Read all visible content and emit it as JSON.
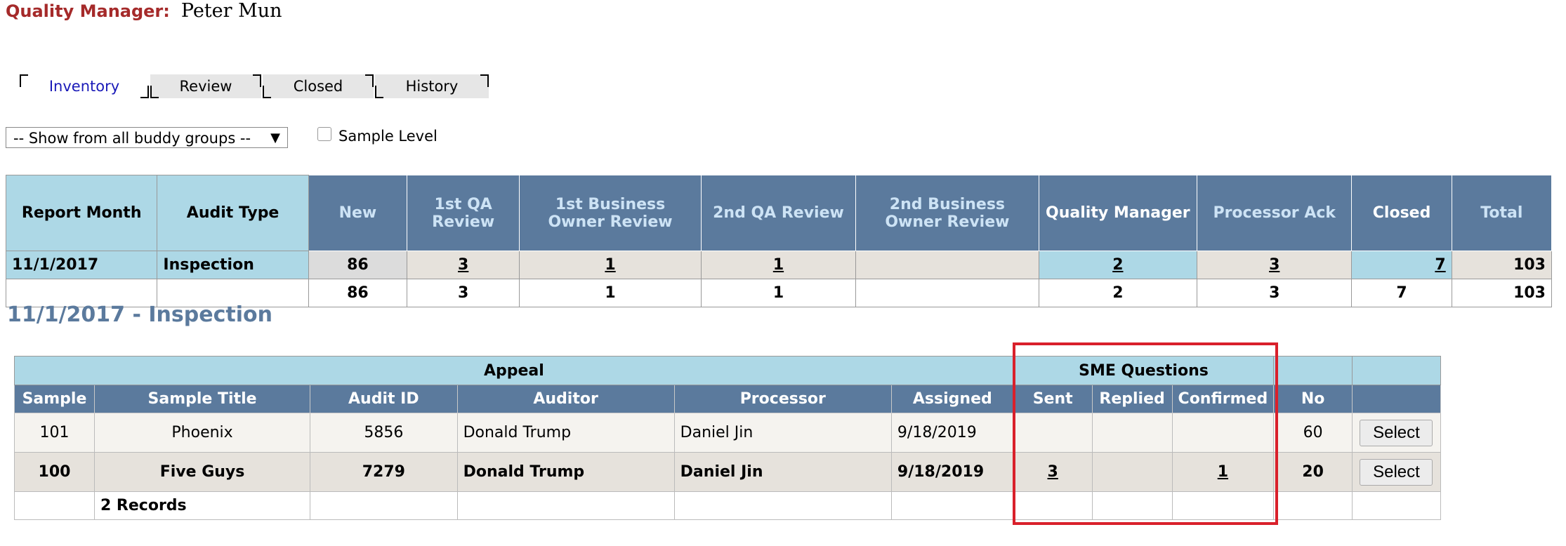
{
  "header": {
    "label": "Quality Manager:",
    "name": "Peter Mun"
  },
  "tabs": [
    {
      "label": "Inventory",
      "active": true
    },
    {
      "label": "Review",
      "active": false
    },
    {
      "label": "Closed",
      "active": false
    },
    {
      "label": "History",
      "active": false
    }
  ],
  "filter": {
    "selected": "-- Show from all buddy groups --",
    "arrow": "▼"
  },
  "sample_level": {
    "label": "Sample Level",
    "checked": false
  },
  "summary": {
    "headers": [
      "Report Month",
      "Audit Type",
      "New",
      "1st QA Review",
      "1st Business Owner Review",
      "2nd QA Review",
      "2nd Business Owner Review",
      "Quality Manager",
      "Processor Ack",
      "Closed",
      "Total"
    ],
    "row": {
      "month": "11/1/2017",
      "type": "Inspection",
      "new": "86",
      "qa1": "3",
      "bo1": "1",
      "qa2": "1",
      "bo2": "",
      "qm": "2",
      "ack": "3",
      "closed": "7",
      "total": "103"
    },
    "totals": {
      "new": "86",
      "qa1": "3",
      "bo1": "1",
      "qa2": "1",
      "bo2": "",
      "qm": "2",
      "ack": "3",
      "closed": "7",
      "total": "103"
    }
  },
  "section_title": "11/1/2017 - Inspection",
  "detail": {
    "group_headers": {
      "appeal": "Appeal",
      "sme": "SME Questions"
    },
    "headers": [
      "Sample",
      "Sample Title",
      "Audit ID",
      "Auditor",
      "Processor",
      "Assigned",
      "Sent",
      "Replied",
      "Confirmed",
      "No",
      ""
    ],
    "rows": [
      {
        "sample": "101",
        "title": "Phoenix",
        "audit_id": "5856",
        "auditor": "Donald Trump",
        "processor": "Daniel Jin",
        "assigned": "9/18/2019",
        "sent": "",
        "replied": "",
        "confirmed": "",
        "no": "60",
        "action": "Select"
      },
      {
        "sample": "100",
        "title": "Five Guys",
        "audit_id": "7279",
        "auditor": "Donald Trump",
        "processor": "Daniel Jin",
        "assigned": "9/18/2019",
        "sent": "3",
        "replied": "",
        "confirmed": "1",
        "no": "20",
        "action": "Select"
      }
    ],
    "footer": "2 Records"
  },
  "colors": {
    "header_label": "#a52a2a",
    "dark_header": "#5b7a9d",
    "light_header": "#add8e6",
    "highlight_box": "#d9202b",
    "tab_active_text": "#1a1ab8"
  }
}
